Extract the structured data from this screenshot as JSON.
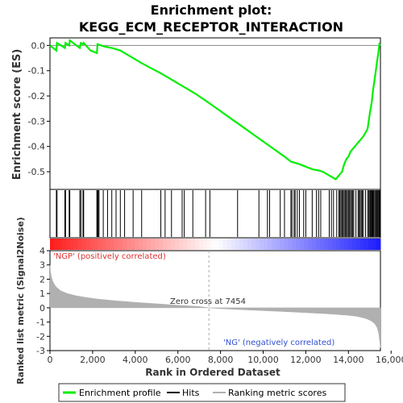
{
  "chart_data": {
    "type": "line",
    "title_line1": "Enrichment plot:",
    "title_line2": "KEGG_ECM_RECEPTOR_INTERACTION",
    "xlabel": "Rank in Ordered Dataset",
    "ylabel_top": "Enrichment score (ES)",
    "ylabel_bottom": "Ranked list metric (Signal2Noise)",
    "xlim": [
      0,
      15500
    ],
    "x_ticks": [
      0,
      2000,
      4000,
      6000,
      8000,
      10000,
      12000,
      14000,
      16000
    ],
    "x_tick_labels": [
      "0",
      "2,000",
      "4,000",
      "6,000",
      "8,000",
      "10,000",
      "12,000",
      "14,000",
      "16,000"
    ],
    "es_ylim": [
      -0.57,
      0.03
    ],
    "es_ticks": [
      0.0,
      -0.1,
      -0.2,
      -0.3,
      -0.4,
      -0.5
    ],
    "es_tick_labels": [
      "0.0",
      "-0.1",
      "-0.2",
      "-0.3",
      "-0.4",
      "-0.5"
    ],
    "metric_ylim": [
      -3,
      4
    ],
    "metric_ticks": [
      4,
      3,
      2,
      1,
      0,
      -1,
      -2,
      -3
    ],
    "metric_tick_labels": [
      "4",
      "3",
      "2",
      "1",
      "0",
      "-1",
      "-2",
      "-3"
    ],
    "zero_cross_label": "Zero cross at 7454",
    "zero_cross_rank": 7454,
    "pos_label": "'NGP' (positively correlated)",
    "neg_label": "'NG' (negatively correlated)",
    "series": [
      {
        "name": "Enrichment profile",
        "color": "#00ee00",
        "x": [
          0,
          300,
          330,
          700,
          730,
          900,
          930,
          1400,
          1450,
          1550,
          1580,
          1900,
          2200,
          2230,
          2400,
          2600,
          2900,
          3100,
          3300,
          3500,
          3700,
          3900,
          4100,
          4300,
          5200,
          5500,
          6000,
          6300,
          6800,
          7500,
          8000,
          8500,
          9000,
          9500,
          10000,
          10500,
          11000,
          11300,
          11500,
          11700,
          12000,
          12300,
          12600,
          12800,
          13000,
          13200,
          13400,
          13500,
          13600,
          13700,
          13800,
          13900,
          14000,
          14100,
          14200,
          14300,
          14400,
          14500,
          14600,
          14700,
          14800,
          14900,
          15000,
          15100,
          15150,
          15200,
          15250,
          15300,
          15350,
          15400,
          15450,
          15500
        ],
        "y": [
          0.0,
          -0.02,
          0.01,
          -0.01,
          0.01,
          0.0,
          0.02,
          -0.01,
          0.01,
          0.005,
          0.01,
          -0.02,
          -0.03,
          0.005,
          0.0,
          -0.005,
          -0.01,
          -0.015,
          -0.02,
          -0.03,
          -0.04,
          -0.05,
          -0.06,
          -0.07,
          -0.11,
          -0.125,
          -0.15,
          -0.165,
          -0.19,
          -0.23,
          -0.26,
          -0.29,
          -0.32,
          -0.35,
          -0.38,
          -0.41,
          -0.44,
          -0.46,
          -0.465,
          -0.47,
          -0.48,
          -0.49,
          -0.495,
          -0.5,
          -0.51,
          -0.52,
          -0.53,
          -0.52,
          -0.51,
          -0.5,
          -0.47,
          -0.45,
          -0.44,
          -0.42,
          -0.41,
          -0.4,
          -0.39,
          -0.38,
          -0.37,
          -0.36,
          -0.345,
          -0.33,
          -0.27,
          -0.22,
          -0.18,
          -0.15,
          -0.12,
          -0.09,
          -0.06,
          -0.03,
          0.005,
          0.0
        ]
      },
      {
        "name": "Hits",
        "color": "#000000",
        "positions": [
          300,
          330,
          700,
          730,
          900,
          930,
          1400,
          1450,
          1550,
          1580,
          2200,
          2230,
          2260,
          2300,
          2500,
          2700,
          2900,
          3100,
          3300,
          3500,
          3900,
          4300,
          5200,
          5400,
          5700,
          6200,
          6300,
          6700,
          7300,
          7500,
          8800,
          9800,
          10200,
          10300,
          10800,
          11000,
          11300,
          11350,
          11450,
          11500,
          11600,
          11700,
          11900,
          12000,
          12300,
          12500,
          12600,
          12700,
          13100,
          13200,
          13300,
          13450,
          13550,
          13600,
          13650,
          13700,
          13750,
          13800,
          13850,
          13900,
          13950,
          14000,
          14050,
          14100,
          14150,
          14200,
          14250,
          14350,
          14450,
          14500,
          14550,
          14600,
          14650,
          14700,
          14800,
          14900,
          14950,
          15000,
          15030,
          15060,
          15100,
          15130,
          15160,
          15200,
          15250,
          15300,
          15330,
          15360,
          15400,
          15440,
          15470
        ]
      },
      {
        "name": "Ranking metric scores",
        "color": "#b0b0b0",
        "x": [
          0,
          20,
          60,
          120,
          200,
          300,
          500,
          800,
          1200,
          1700,
          2300,
          3000,
          4000,
          5000,
          6000,
          7000,
          7454,
          8000,
          9000,
          10000,
          11000,
          12000,
          12500,
          13000,
          13500,
          14000,
          14400,
          14700,
          14900,
          15100,
          15250,
          15350,
          15420,
          15470,
          15500
        ],
        "y": [
          3.0,
          2.6,
          2.2,
          1.9,
          1.65,
          1.45,
          1.2,
          1.0,
          0.85,
          0.72,
          0.6,
          0.5,
          0.38,
          0.28,
          0.18,
          0.09,
          0.0,
          -0.06,
          -0.13,
          -0.2,
          -0.27,
          -0.34,
          -0.38,
          -0.42,
          -0.47,
          -0.53,
          -0.6,
          -0.7,
          -0.8,
          -0.95,
          -1.15,
          -1.4,
          -1.8,
          -2.4,
          -2.8
        ]
      }
    ],
    "legend_items": [
      {
        "label": "Enrichment profile",
        "color": "#00ee00"
      },
      {
        "label": "Hits",
        "color": "#000000"
      },
      {
        "label": "Ranking metric scores",
        "color": "#b0b0b0"
      }
    ],
    "legend_position": "bottom",
    "grid": false
  }
}
